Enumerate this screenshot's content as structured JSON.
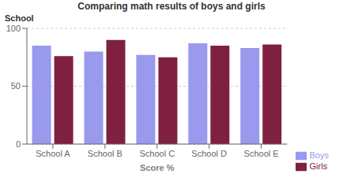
{
  "chart_data": {
    "type": "bar",
    "title": "Comparing math results of boys and girls",
    "ylabel": "School",
    "xlabel": "Score %",
    "categories": [
      "School A",
      "School B",
      "School C",
      "School D",
      "School E"
    ],
    "series": [
      {
        "name": "Boys",
        "color": "#9999ee",
        "values": [
          85,
          80,
          77,
          87,
          83
        ]
      },
      {
        "name": "Girls",
        "color": "#802040",
        "values": [
          76,
          90,
          75,
          85,
          86
        ]
      }
    ],
    "ylim": [
      0,
      100
    ],
    "yticks": [
      0,
      50,
      100
    ],
    "grid": true,
    "legend": "lower right"
  }
}
